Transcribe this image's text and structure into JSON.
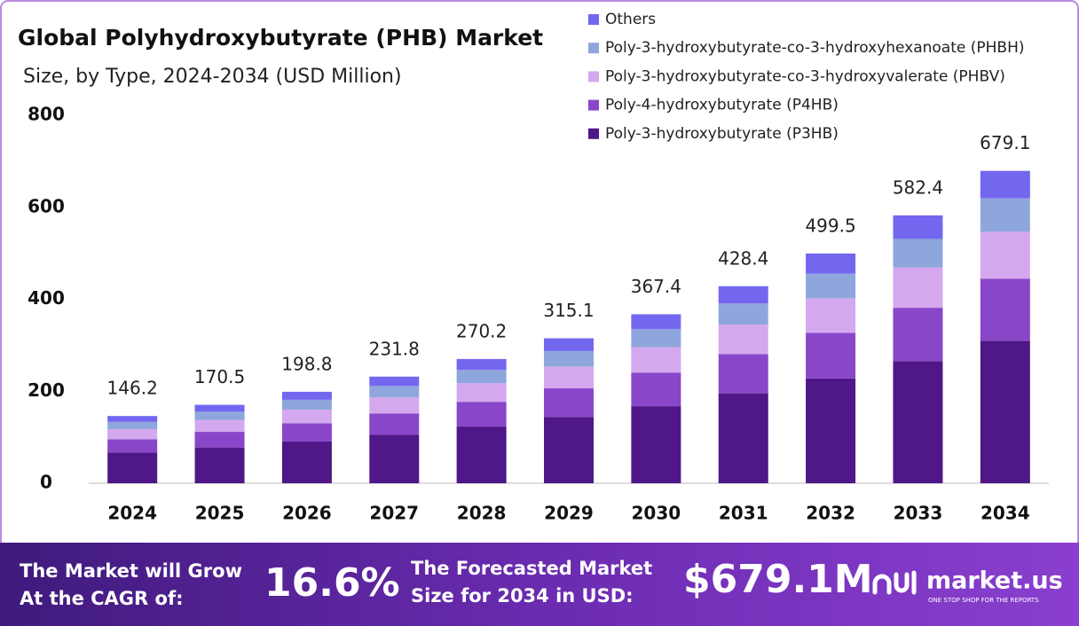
{
  "chart_data": {
    "type": "stacked-bar",
    "title": "Global Polyhydroxybutyrate (PHB) Market",
    "subtitle": "Size, by Type, 2024-2034 (USD Million)",
    "categories": [
      "2024",
      "2025",
      "2026",
      "2027",
      "2028",
      "2029",
      "2030",
      "2031",
      "2032",
      "2033",
      "2034"
    ],
    "series": [
      {
        "name": "Poly-3-hydroxybutyrate (P3HB)",
        "color": "#4f1787",
        "values": [
          66.7,
          77.8,
          90.7,
          105.7,
          123.2,
          143.7,
          167.5,
          195.4,
          227.8,
          265.6,
          309.7
        ]
      },
      {
        "name": "Poly-4-hydroxybutyrate (P4HB)",
        "color": "#8a46c9",
        "values": [
          29.1,
          33.9,
          39.6,
          46.1,
          53.8,
          62.7,
          73.1,
          85.3,
          99.4,
          115.9,
          135.1
        ]
      },
      {
        "name": "Poly-3-hydroxybutyrate-co-3-hydroxyvalerate (PHBV)",
        "color": "#d4a8ee",
        "values": [
          21.9,
          25.6,
          29.8,
          34.8,
          40.5,
          47.3,
          55.1,
          64.3,
          74.9,
          87.4,
          101.9
        ]
      },
      {
        "name": "Poly-3-hydroxybutyrate-co-3-hydroxyhexanoate (PHBH)",
        "color": "#8fa6dc",
        "values": [
          15.6,
          18.2,
          21.3,
          24.8,
          28.9,
          33.7,
          39.3,
          45.8,
          53.4,
          62.3,
          72.7
        ]
      },
      {
        "name": "Others",
        "color": "#7367f0",
        "values": [
          12.9,
          15.0,
          17.4,
          20.4,
          23.8,
          27.7,
          32.4,
          37.6,
          44.0,
          51.2,
          59.7
        ]
      }
    ],
    "totals": [
      146.2,
      170.5,
      198.8,
      231.8,
      270.2,
      315.1,
      367.4,
      428.4,
      499.5,
      582.4,
      679.1
    ],
    "ylim": [
      0,
      800
    ],
    "yticks": [
      0,
      200,
      400,
      600,
      800
    ],
    "grid": false,
    "legend": "top-right"
  },
  "footer": {
    "cagr_label": [
      "The Market will Grow",
      "At the CAGR of:"
    ],
    "cagr_value": "16.6%",
    "forecast_label": [
      "The Forecasted Market",
      "Size for 2034 in USD:"
    ],
    "forecast_value": "$679.1M",
    "brand": "market.us",
    "tagline": "ONE STOP SHOP FOR THE REPORTS"
  }
}
